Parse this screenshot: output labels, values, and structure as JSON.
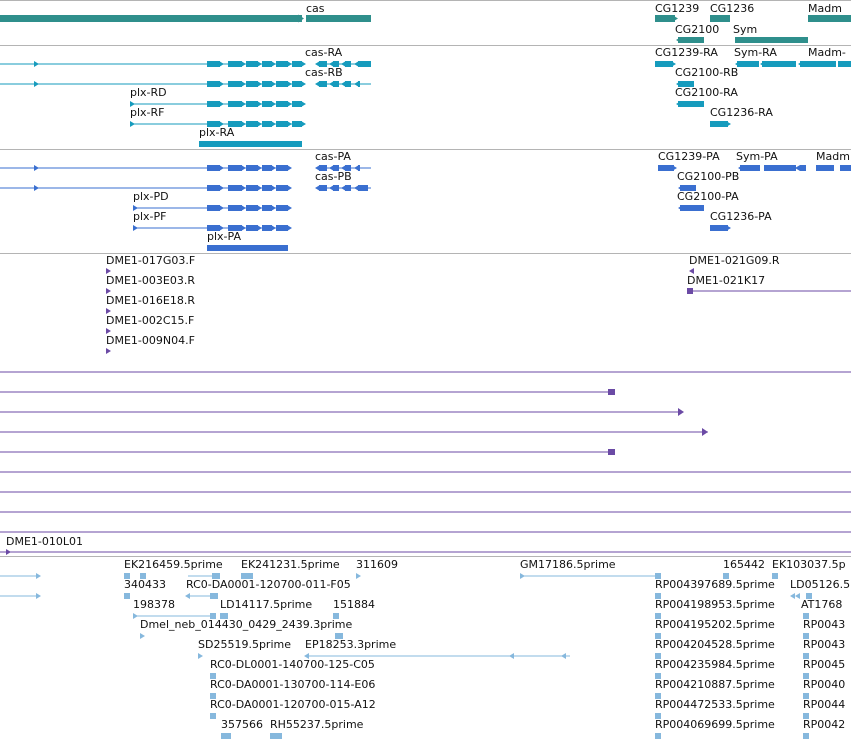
{
  "tracks": {
    "genes": {
      "color": "#2f8f8c",
      "labels": [
        "cas",
        "CG1239",
        "CG1236",
        "Madm",
        "CG2100",
        "Sym"
      ]
    },
    "transcripts_a": {
      "color": "#169bbd",
      "labels": [
        "cas-RA",
        "cas-RB",
        "plx-RD",
        "plx-RF",
        "plx-RA",
        "CG1239-RA",
        "Sym-RA",
        "Madm-",
        "CG2100-RB",
        "CG2100-RA",
        "CG1236-RA"
      ]
    },
    "transcripts_b": {
      "color": "#3a6fd0",
      "labels": [
        "cas-PA",
        "cas-PB",
        "plx-PD",
        "plx-PF",
        "plx-PA",
        "CG1239-PA",
        "Sym-PA",
        "Madm",
        "CG2100-PB",
        "CG2100-PA",
        "CG1236-PA"
      ]
    },
    "clones": {
      "color": "#6b4aa5",
      "labels": [
        "DME1-017G03.F",
        "DME1-003E03.R",
        "DME1-016E18.R",
        "DME1-002C15.F",
        "DME1-009N04.F",
        "DME1-021G09.R",
        "DME1-021K17",
        "DME1-010L01"
      ]
    },
    "ests": {
      "color": "#86b8dd",
      "labels": [
        "EK216459.5prime",
        "EK241231.5prime",
        "311609",
        "340433",
        "RC0-DA0001-120700-011-F05",
        "198378",
        "LD14117.5prime",
        "151884",
        "Dmel_neb_014430_0429_2439.3prime",
        "SD25519.5prime",
        "EP18253.3prime",
        "RC0-DL0001-140700-125-C05",
        "RC0-DA0001-130700-114-E06",
        "RC0-DA0001-120700-015-A12",
        "357566",
        "RH55237.5prime",
        "GM17186.5prime",
        "165442",
        "EK103037.5p",
        "RP004397689.5prime",
        "LD05126.5",
        "RP004198953.5prime",
        "AT1768",
        "RP004195202.5prime",
        "RP0043",
        "RP004204528.5prime",
        "RP0043",
        "RP004235984.5prime",
        "RP0045",
        "RP004210887.5prime",
        "RP0040",
        "RP004472533.5prime",
        "RP0044",
        "RP004069699.5prime",
        "RP0042"
      ]
    }
  }
}
